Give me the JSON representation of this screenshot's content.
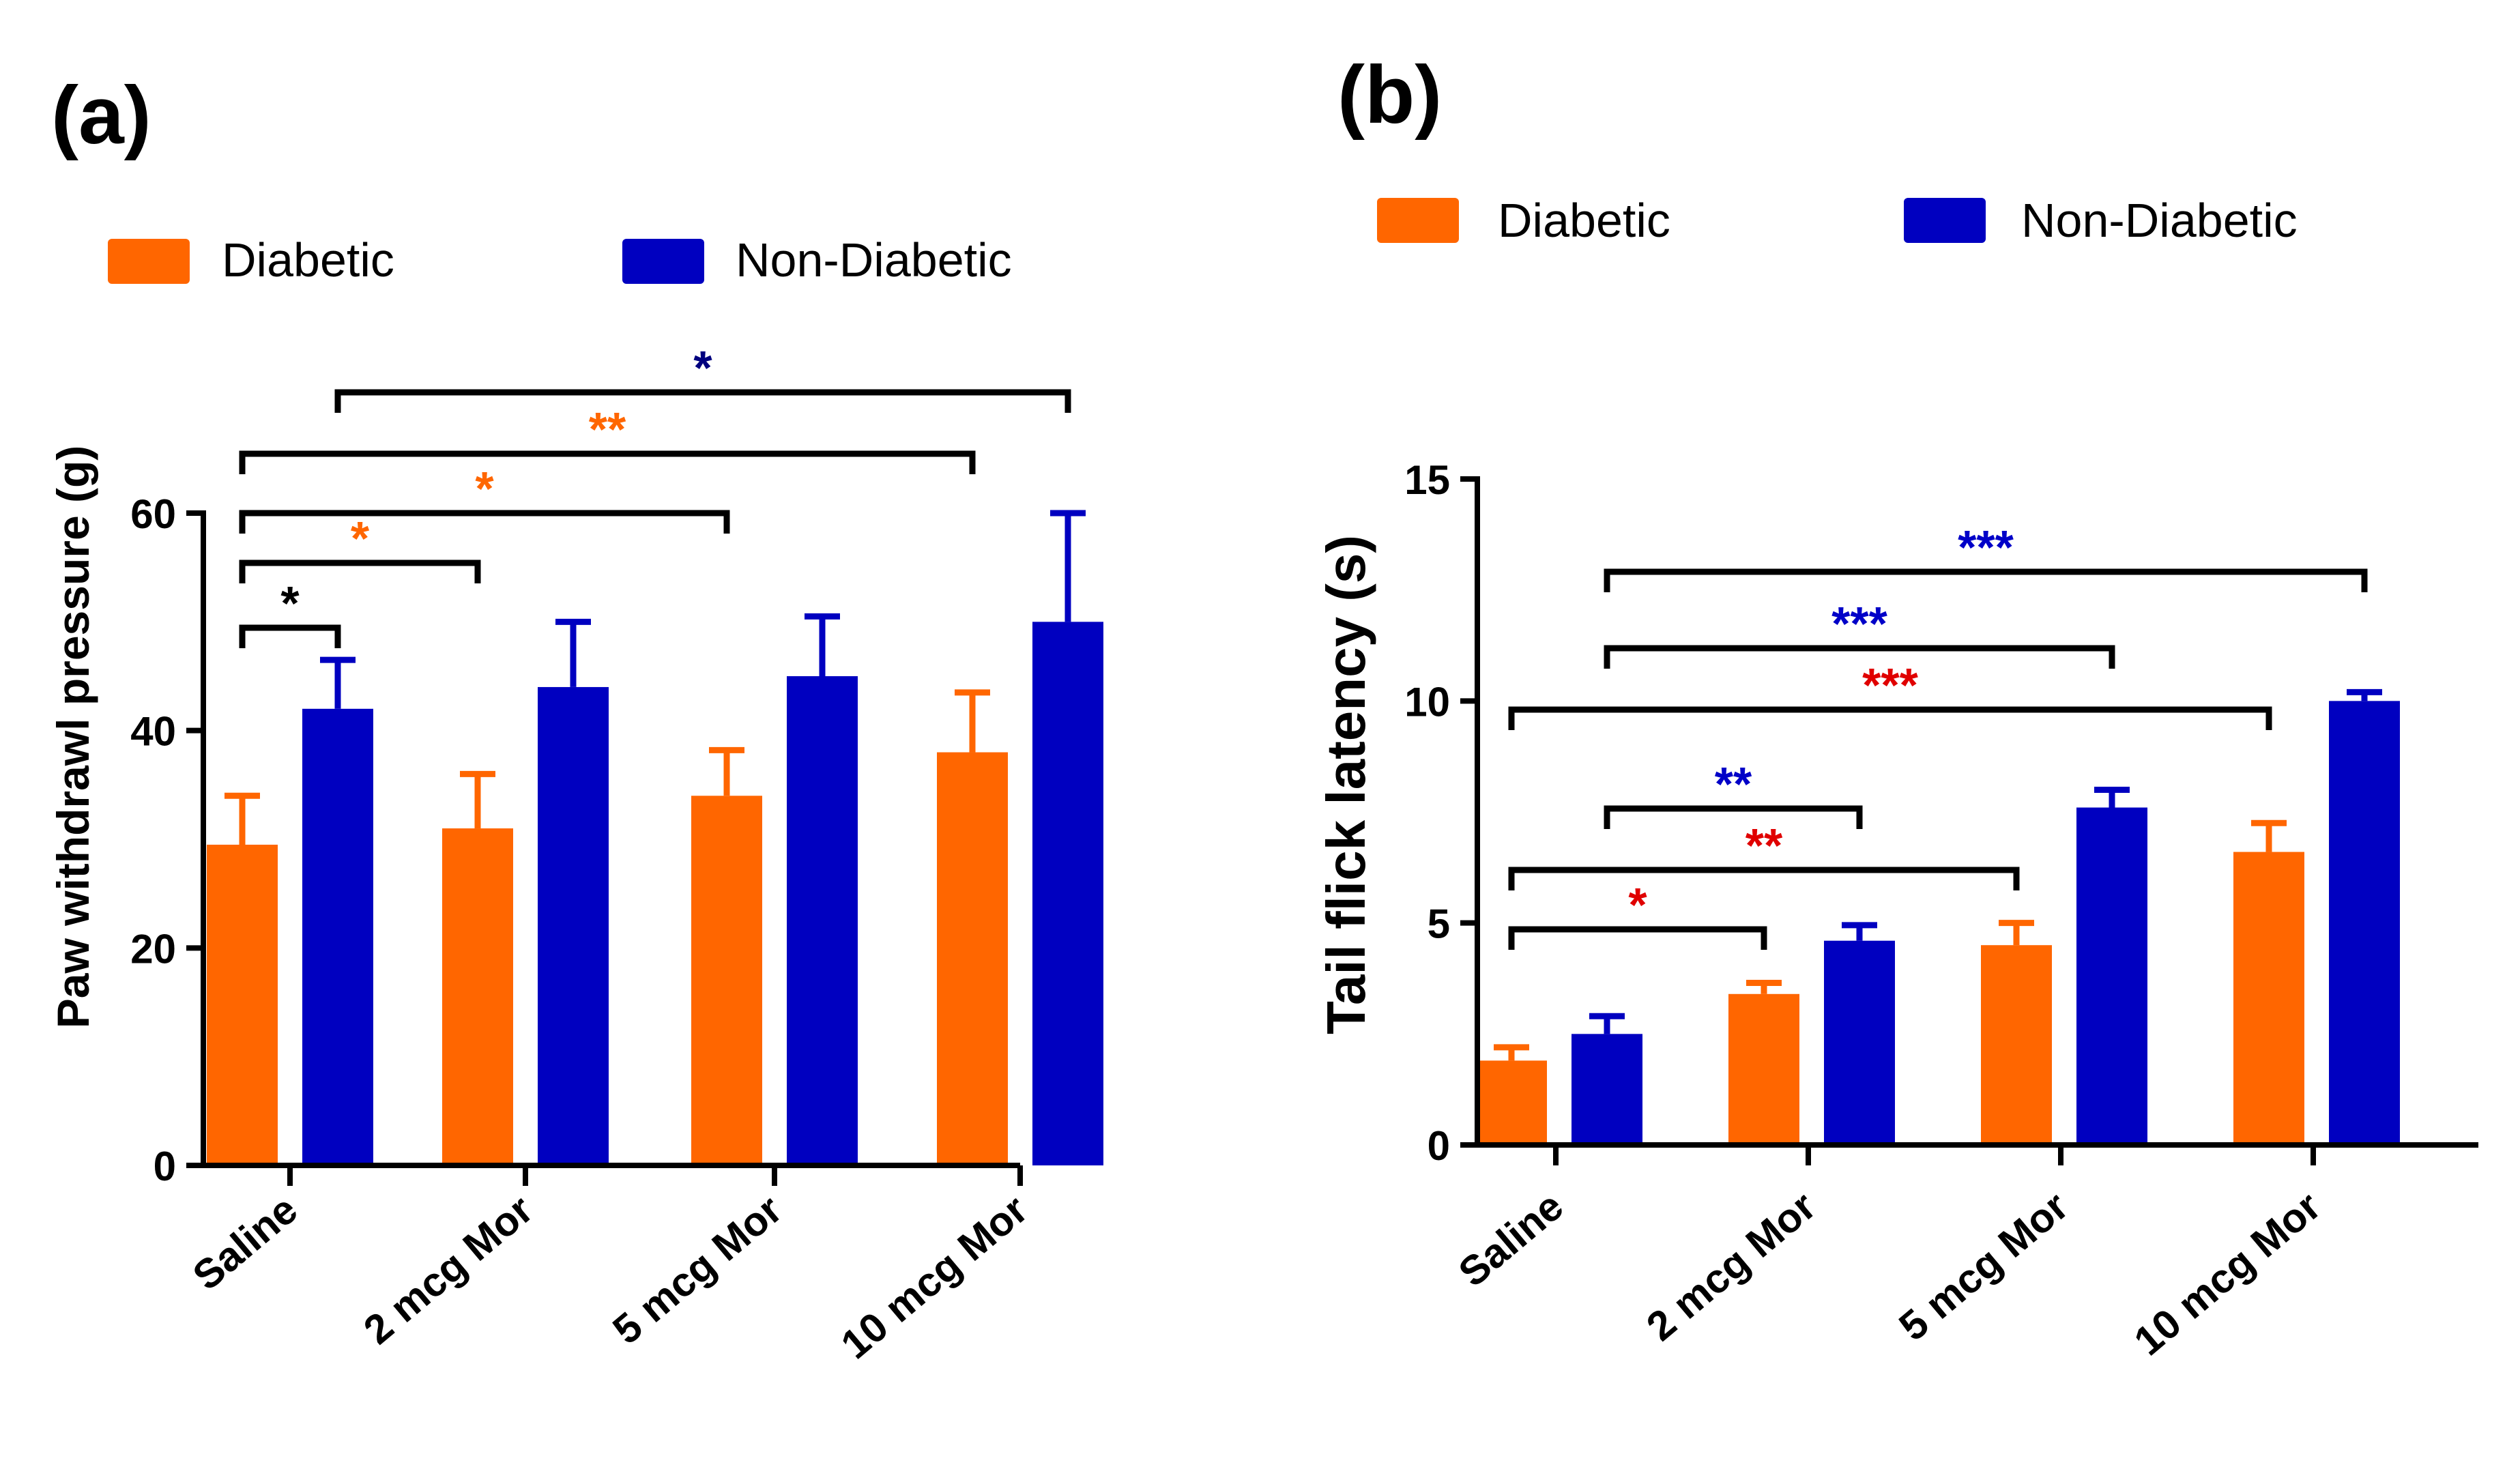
{
  "colors": {
    "diabetic": "#FF6600",
    "non_diabetic": "#0000C0",
    "axis": "#000000",
    "sig_black": "#000000",
    "sig_orange": "#FF6600",
    "sig_navy": "#00007F",
    "sig_red": "#E00000",
    "sig_blue": "#0000C8"
  },
  "chart_data": [
    {
      "panel_label": "(a)",
      "type": "bar",
      "categories": [
        "Saline",
        "2 mcg Mor",
        "5 mcg Mor",
        "10 mcg Mor"
      ],
      "series": [
        {
          "name": "Diabetic",
          "values": [
            29.5,
            31,
            34,
            38
          ],
          "errors": [
            4.5,
            5,
            4.2,
            5.5
          ]
        },
        {
          "name": "Non-Diabetic",
          "values": [
            42,
            44,
            45,
            50
          ],
          "errors": [
            4.5,
            6,
            5.5,
            10
          ]
        }
      ],
      "xlabel": "",
      "ylabel": "Paw withdrawl pressure (g)",
      "ylim": [
        0,
        60
      ],
      "yticks": [
        "0",
        "20",
        "40",
        "60"
      ],
      "legend": [
        "Diabetic",
        "Non-Diabetic"
      ],
      "significance": [
        {
          "from": [
            0,
            0
          ],
          "to": [
            0,
            1
          ],
          "label": "*",
          "color": "black"
        },
        {
          "from": [
            0,
            0
          ],
          "to": [
            1,
            0
          ],
          "label": "*",
          "color": "orange"
        },
        {
          "from": [
            0,
            0
          ],
          "to": [
            2,
            0
          ],
          "label": "*",
          "color": "orange"
        },
        {
          "from": [
            0,
            0
          ],
          "to": [
            3,
            0
          ],
          "label": "**",
          "color": "orange"
        },
        {
          "from": [
            0,
            1
          ],
          "to": [
            3,
            1
          ],
          "label": "*",
          "color": "navy"
        }
      ]
    },
    {
      "panel_label": "(b)",
      "type": "bar",
      "categories": [
        "Saline",
        "2 mcg Mor",
        "5 mcg Mor",
        "10 mcg Mor"
      ],
      "series": [
        {
          "name": "Diabetic",
          "values": [
            1.9,
            3.4,
            4.5,
            6.6
          ],
          "errors": [
            0.3,
            0.25,
            0.5,
            0.65
          ]
        },
        {
          "name": "Non-Diabetic",
          "values": [
            2.5,
            4.6,
            7.6,
            10
          ],
          "errors": [
            0.4,
            0.35,
            0.4,
            0.2
          ]
        }
      ],
      "xlabel": "",
      "ylabel": "Tail  flick latency (s)",
      "ylim": [
        0,
        15
      ],
      "yticks": [
        "0",
        "5",
        "10",
        "15"
      ],
      "legend": [
        "Diabetic",
        "Non-Diabetic"
      ],
      "significance": [
        {
          "from": [
            0,
            0
          ],
          "to": [
            1,
            0
          ],
          "label": "*",
          "color": "red"
        },
        {
          "from": [
            0,
            0
          ],
          "to": [
            2,
            0
          ],
          "label": "**",
          "color": "red"
        },
        {
          "from": [
            0,
            1
          ],
          "to": [
            1,
            1
          ],
          "label": "**",
          "color": "blue"
        },
        {
          "from": [
            0,
            0
          ],
          "to": [
            3,
            0
          ],
          "label": "***",
          "color": "red"
        },
        {
          "from": [
            0,
            1
          ],
          "to": [
            2,
            1
          ],
          "label": "***",
          "color": "blue"
        },
        {
          "from": [
            0,
            1
          ],
          "to": [
            3,
            1
          ],
          "label": "***",
          "color": "blue"
        }
      ]
    }
  ]
}
